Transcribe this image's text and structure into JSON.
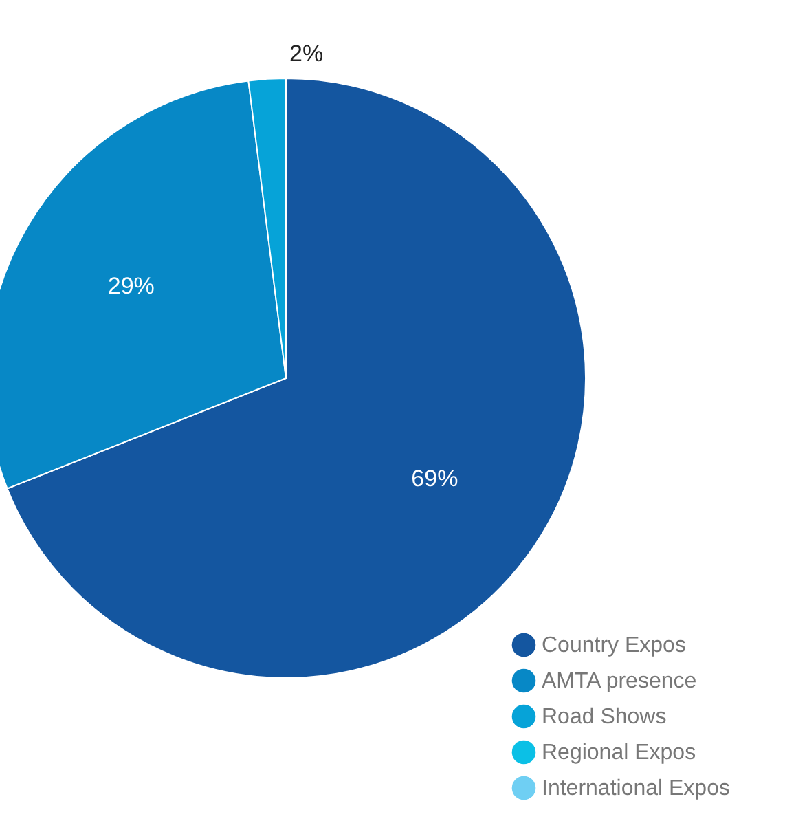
{
  "chart_data": {
    "type": "pie",
    "categories": [
      "Country Expos",
      "AMTA presence",
      "Road Shows",
      "Regional Expos",
      "International Expos"
    ],
    "values": [
      69,
      29,
      2,
      0,
      0
    ],
    "colors": [
      "#1456a0",
      "#0788c6",
      "#06a3d8",
      "#0bc0e6",
      "#6fcff3"
    ],
    "value_labels": [
      "69%",
      "29%",
      "2%",
      null,
      null
    ],
    "legend": "bottom right"
  }
}
